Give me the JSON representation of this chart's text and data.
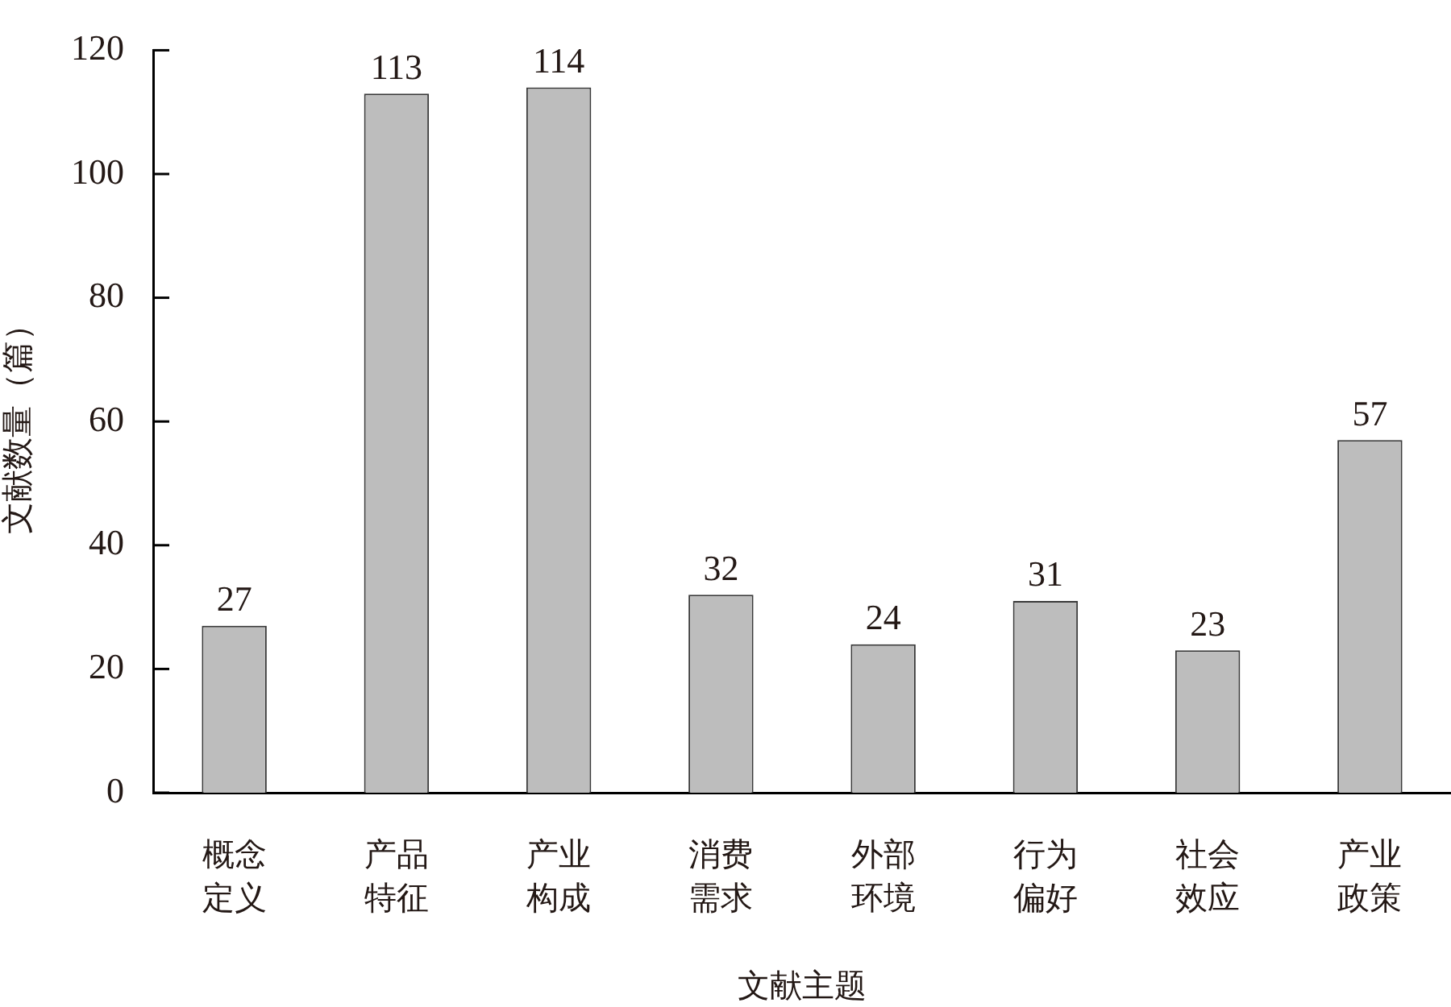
{
  "chart_data": {
    "type": "bar",
    "xlabel": "文献主题",
    "ylabel": "文献数量（篇）",
    "categories": [
      "概念定义",
      "产品特征",
      "产业构成",
      "消费需求",
      "外部环境",
      "行为偏好",
      "社会效应",
      "产业政策"
    ],
    "values": [
      27,
      113,
      114,
      32,
      24,
      31,
      23,
      57
    ],
    "color": "#bdbdbd",
    "ylim": [
      0,
      120
    ],
    "yticks": [
      0,
      20,
      40,
      60,
      80,
      100,
      120
    ],
    "grid": false,
    "legend": false,
    "data_labels": true
  }
}
